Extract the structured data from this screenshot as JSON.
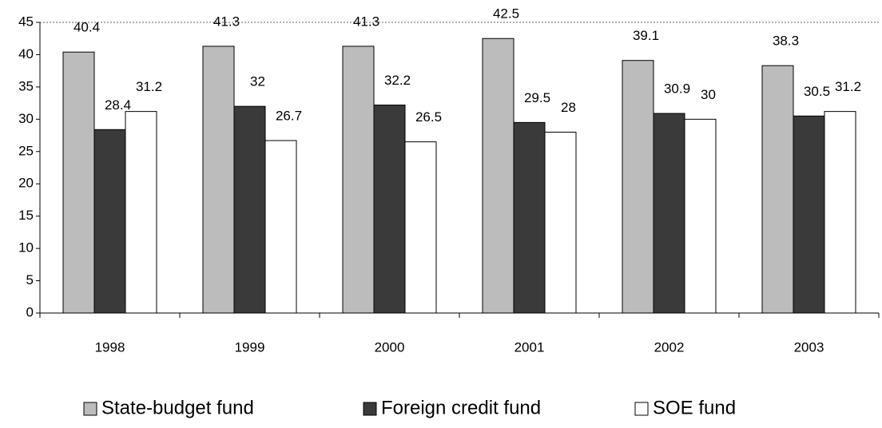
{
  "chart_data": {
    "type": "bar",
    "categories": [
      "1998",
      "1999",
      "2000",
      "2001",
      "2002",
      "2003"
    ],
    "series": [
      {
        "name": "State-budget fund",
        "color": "#bcbcbc",
        "values": [
          40.4,
          41.3,
          41.3,
          42.5,
          39.1,
          38.3
        ]
      },
      {
        "name": "Foreign credit fund",
        "color": "#3a3a3a",
        "values": [
          28.4,
          32,
          32.2,
          29.5,
          30.9,
          30.5
        ]
      },
      {
        "name": "SOE fund",
        "color": "#ffffff",
        "values": [
          31.2,
          26.7,
          26.5,
          28,
          30,
          31.2
        ]
      }
    ],
    "ylim": [
      0,
      45
    ],
    "yticks": [
      0,
      5,
      10,
      15,
      20,
      25,
      30,
      35,
      40,
      45
    ],
    "grid": false,
    "legend": "bottom"
  }
}
